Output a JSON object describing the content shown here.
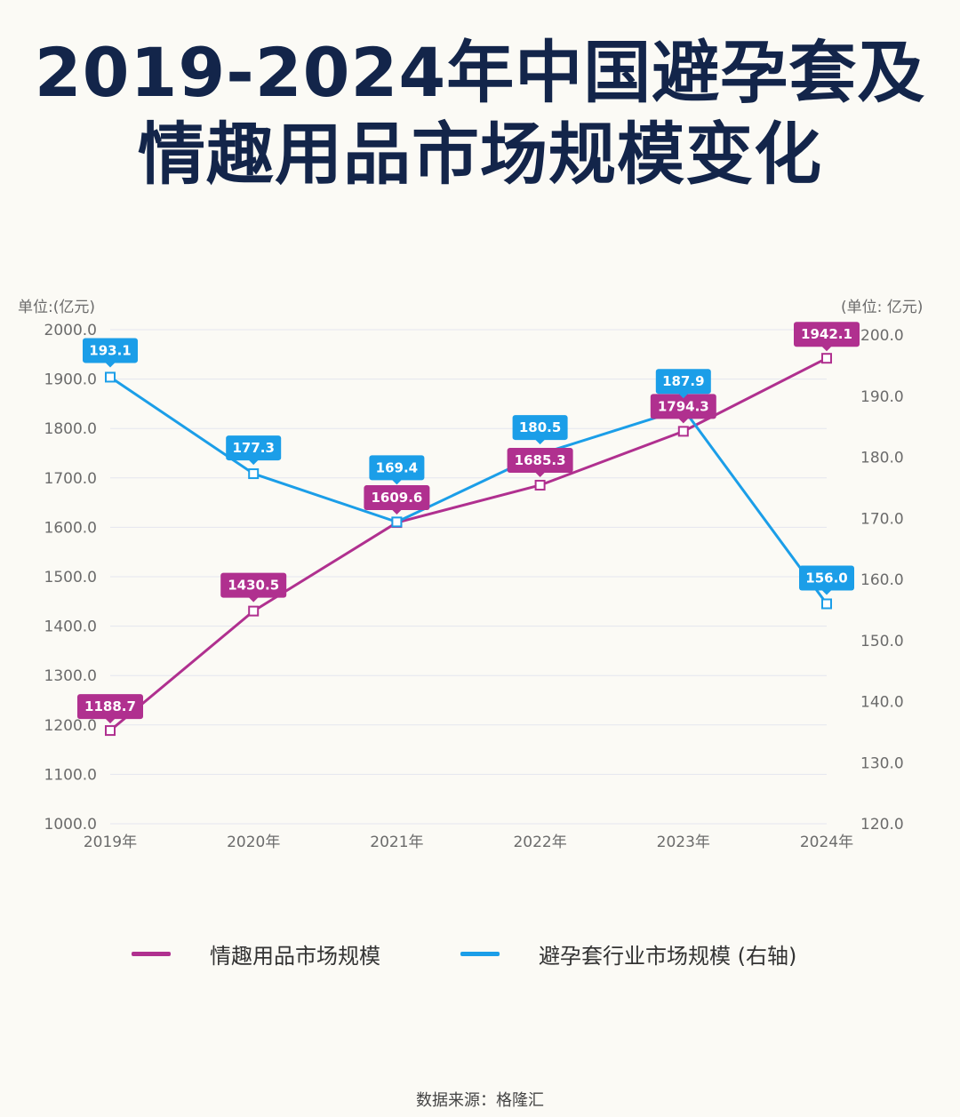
{
  "title": {
    "line1": "2019-2024年中国避孕套及",
    "line2": "情趣用品市场规模变化"
  },
  "source": "数据来源：格隆汇",
  "chart_data": {
    "type": "line",
    "title": "2019-2024年中国避孕套及情趣用品市场规模变化",
    "categories": [
      "2019年",
      "2020年",
      "2021年",
      "2022年",
      "2023年",
      "2024年"
    ],
    "left_axis": {
      "unit_label": "单位:(亿元)",
      "ylim": [
        1000,
        2000
      ],
      "ticks": [
        "1000.0",
        "1100.0",
        "1200.0",
        "1300.0",
        "1400.0",
        "1500.0",
        "1600.0",
        "1700.0",
        "1800.0",
        "1900.0",
        "2000.0"
      ]
    },
    "right_axis": {
      "unit_label": "(单位: 亿元)",
      "ylim": [
        120,
        200
      ],
      "ticks": [
        "120.0",
        "130.0",
        "140.0",
        "150.0",
        "160.0",
        "170.0",
        "180.0",
        "190.0",
        "200.0"
      ]
    },
    "series": [
      {
        "name": "情趣用品市场规模",
        "axis": "left",
        "color": "#b0308f",
        "values": [
          1188.7,
          1430.5,
          1609.6,
          1685.3,
          1794.3,
          1942.1
        ],
        "labels": [
          "1188.7",
          "1430.5",
          "1609.6",
          "1685.3",
          "1794.3",
          "1942.1"
        ]
      },
      {
        "name": "避孕套行业市场规模 (右轴)",
        "axis": "right",
        "color": "#1b9ee8",
        "values": [
          193.1,
          177.3,
          169.4,
          180.5,
          187.9,
          156.0
        ],
        "labels": [
          "193.1",
          "177.3",
          "169.4",
          "180.5",
          "187.9",
          "156.0"
        ]
      }
    ],
    "grid": true,
    "legend_position": "bottom"
  },
  "legend": [
    {
      "label": "情趣用品市场规模",
      "color": "#b0308f"
    },
    {
      "label": "避孕套行业市场规模 (右轴)",
      "color": "#1b9ee8"
    }
  ]
}
